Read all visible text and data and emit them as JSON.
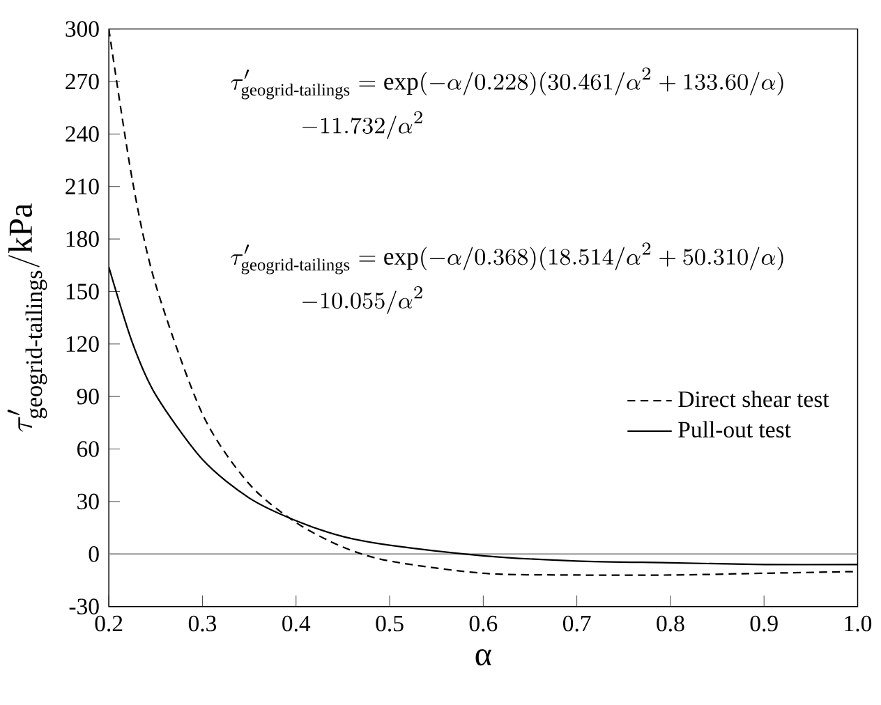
{
  "chart_data": {
    "type": "line",
    "xlabel": "α",
    "ylabel": "\\tau_{\\text{geogrid-tailings}}'/\\text{kPa}",
    "x": [
      0.2,
      0.225,
      0.25,
      0.3,
      0.35,
      0.4,
      0.45,
      0.5,
      0.6,
      0.7,
      0.8,
      0.9,
      1.0
    ],
    "series": [
      {
        "name": "Direct shear test",
        "color": "#000000",
        "line_style": "dashed",
        "values": [
          300,
          214,
          154,
          80,
          40,
          18,
          4,
          -4,
          -11,
          -12,
          -12,
          -11,
          -10
        ]
      },
      {
        "name": "Pull-out test",
        "color": "#000000",
        "line_style": "solid",
        "values": [
          164,
          121,
          91,
          54,
          32,
          19,
          10,
          5,
          -1,
          -4,
          -5,
          -6,
          -6
        ]
      }
    ],
    "xlim": [
      0.2,
      1.0
    ],
    "ylim": [
      -30,
      300
    ],
    "xticks": [
      {
        "value": 0.2,
        "label": "0.2"
      },
      {
        "value": 0.3,
        "label": "0.3"
      },
      {
        "value": 0.4,
        "label": "0.4"
      },
      {
        "value": 0.5,
        "label": "0.5"
      },
      {
        "value": 0.6,
        "label": "0.6"
      },
      {
        "value": 0.7,
        "label": "0.7"
      },
      {
        "value": 0.8,
        "label": "0.8"
      },
      {
        "value": 0.9,
        "label": "0.9"
      },
      {
        "value": 1.0,
        "label": "1.0"
      }
    ],
    "yticks": [
      -30,
      0,
      30,
      60,
      90,
      120,
      150,
      180,
      210,
      240,
      270,
      300
    ],
    "ref_lines": [
      {
        "axis": "y",
        "value": 0,
        "color": "#999999"
      }
    ],
    "annotations": [
      "\\tau_{\\text{geogrid-tailings}}'=\\text{exp}(-\\alpha/0.228)(30.461/\\alpha^{2}+133.60/\\alpha)",
      "-11.732/\\alpha^{2}",
      "\\tau_{\\text{geogrid-tailings}}'=\\text{exp}(-\\alpha/0.368)(18.514/\\alpha^{2}+50.310/\\alpha)",
      "-10.055/\\alpha^{2}"
    ],
    "legend": "right",
    "grid": false,
    "marker": "none"
  }
}
